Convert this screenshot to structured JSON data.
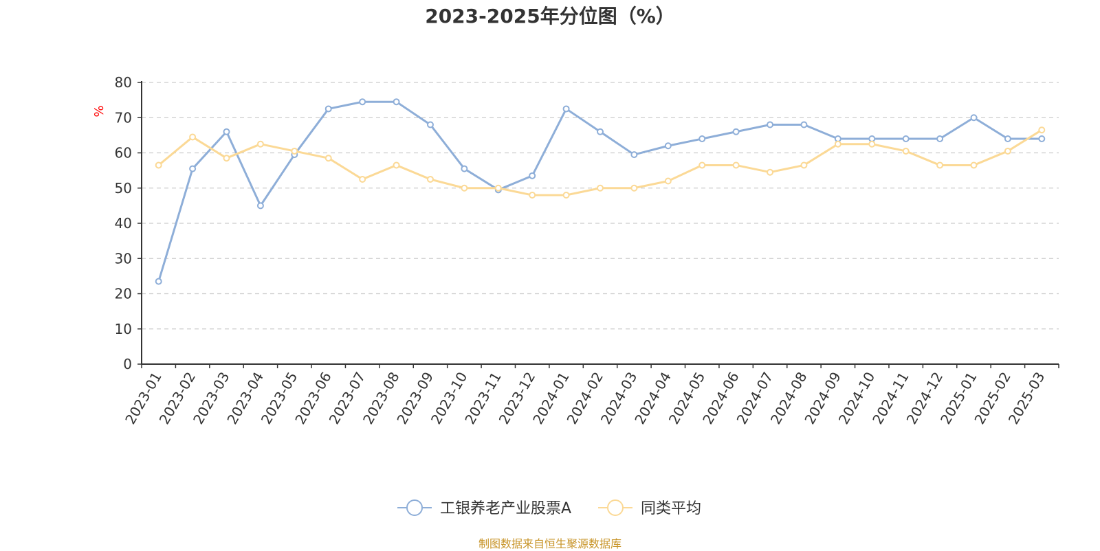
{
  "source_note": "制图数据来自恒生聚源数据库",
  "chart_data": {
    "type": "line",
    "title": "2023-2025年分位图（%）",
    "ylabel": "%",
    "xlabel": "",
    "ylim": [
      0,
      80
    ],
    "yticks": [
      0,
      10,
      20,
      30,
      40,
      50,
      60,
      70,
      80
    ],
    "grid": true,
    "legend_position": "bottom-center",
    "categories": [
      "2023-01",
      "2023-02",
      "2023-03",
      "2023-04",
      "2023-05",
      "2023-06",
      "2023-07",
      "2023-08",
      "2023-09",
      "2023-10",
      "2023-11",
      "2023-12",
      "2024-01",
      "2024-02",
      "2024-03",
      "2024-04",
      "2024-05",
      "2024-06",
      "2024-07",
      "2024-08",
      "2024-09",
      "2024-10",
      "2024-11",
      "2024-12",
      "2025-01",
      "2025-02",
      "2025-03"
    ],
    "series": [
      {
        "name": "工银养老产业股票A",
        "color": "#8eaed8",
        "values": [
          23.5,
          55.5,
          66.0,
          45.0,
          59.5,
          72.5,
          74.5,
          74.5,
          68.0,
          55.5,
          49.5,
          53.5,
          72.5,
          66.0,
          59.5,
          62.0,
          64.0,
          66.0,
          68.0,
          68.0,
          64.0,
          64.0,
          64.0,
          64.0,
          70.0,
          64.0,
          64.0
        ]
      },
      {
        "name": "同类平均",
        "color": "#fbd996",
        "values": [
          56.5,
          64.5,
          58.5,
          62.5,
          60.5,
          58.5,
          52.5,
          56.5,
          52.5,
          50.0,
          50.0,
          48.0,
          48.0,
          50.0,
          50.0,
          52.0,
          56.5,
          56.5,
          54.5,
          56.5,
          62.5,
          62.5,
          60.5,
          56.5,
          56.5,
          60.5,
          66.5
        ]
      }
    ]
  }
}
